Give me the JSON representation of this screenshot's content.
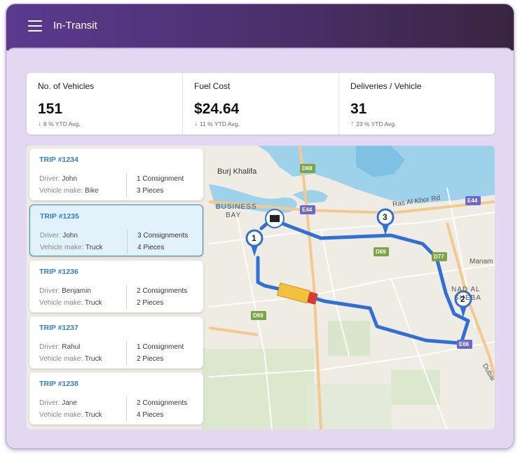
{
  "app": {
    "title": "In-Transit"
  },
  "stats": [
    {
      "label": "No. of Vehicles",
      "value": "151",
      "trend_dir": "down",
      "trend": "8 % YTD Avg."
    },
    {
      "label": "Fuel Cost",
      "value": "$24.64",
      "trend_dir": "down",
      "trend": "11 % YTD Avg."
    },
    {
      "label": "Deliveries / Vehicle",
      "value": "31",
      "trend_dir": "up",
      "trend": "23 % YTD Avg."
    }
  ],
  "trips": [
    {
      "id": "TRIP #1234",
      "driver_label": "Driver:",
      "driver": "John",
      "make_label": "Vehicle make:",
      "make": "Bike",
      "consignments": "1 Consignment",
      "pieces": "3 Pieces",
      "active": false
    },
    {
      "id": "TRIP #1235",
      "driver_label": "Driver:",
      "driver": "John",
      "make_label": "Vehicle make:",
      "make": "Truck",
      "consignments": "3 Consignments",
      "pieces": "4 Pieces",
      "active": true
    },
    {
      "id": "TRIP #1236",
      "driver_label": "Driver:",
      "driver": "Benjamin",
      "make_label": "Vehicle make:",
      "make": "Truck",
      "consignments": "2 Consignments",
      "pieces": "2 Pieces",
      "active": false
    },
    {
      "id": "TRIP #1237",
      "driver_label": "Driver:",
      "driver": "Rahul",
      "make_label": "Vehicle make:",
      "make": "Truck",
      "consignments": "1 Consignment",
      "pieces": "2 Pieces",
      "active": false
    },
    {
      "id": "TRIP #1238",
      "driver_label": "Driver:",
      "driver": "Jane",
      "make_label": "Vehicle make:",
      "make": "Truck",
      "consignments": "2 Consignments",
      "pieces": "4 Pieces",
      "active": false
    }
  ],
  "map": {
    "labels": {
      "burj": "Burj Khalifa",
      "business_bay_1": "BUSINESS",
      "business_bay_2": "BAY",
      "ras_al_khor": "Ras Al Khor Rd",
      "manam": "Manam",
      "nad_al_1": "NAD AL",
      "nad_al_2": "SHEBA",
      "dubai": "Dubai",
      "d68": "D68",
      "d69a": "D69",
      "d69b": "D69",
      "d77": "D77",
      "e44a": "E44",
      "e44b": "E44",
      "e66": "E66"
    },
    "stops": [
      "1",
      "2",
      "3"
    ],
    "colors": {
      "route": "#2f6fd8",
      "water": "#9ed2ea",
      "road": "#f3c98e",
      "park": "#cfe6c0"
    }
  }
}
